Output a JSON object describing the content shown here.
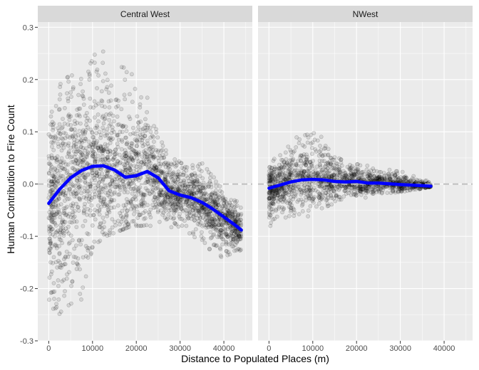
{
  "chart_data": {
    "type": "scatter",
    "title": "",
    "xlabel": "Distance to Populated Places (m)",
    "ylabel": "Human Contribution to Fire Count",
    "xlim": [
      -2500,
      46500
    ],
    "ylim": [
      -0.3,
      0.31
    ],
    "x_ticks": [
      0,
      10000,
      20000,
      30000,
      40000
    ],
    "x_tick_labels": [
      "0",
      "10000",
      "20000",
      "30000",
      "40000"
    ],
    "y_ticks": [
      -0.3,
      -0.2,
      -0.1,
      0.0,
      0.1,
      0.2,
      0.3
    ],
    "y_tick_labels": [
      "-0.3",
      "-0.2",
      "-0.1",
      "0.0",
      "0.1",
      "0.2",
      "0.3"
    ],
    "grid": true,
    "reference_line": {
      "y": 0,
      "style": "dashed",
      "color": "#bdbdbd"
    },
    "colors": {
      "panel_bg": "#ebebeb",
      "strip_bg": "#d9d9d9",
      "grid": "#ffffff",
      "point_fill": "#000000",
      "smooth": "#0000ff"
    },
    "panels": [
      {
        "name": "Central West",
        "point_cloud": {
          "x_range": [
            0,
            44000
          ],
          "envelope": [
            {
              "x": 0,
              "lo": -0.25,
              "hi": 0.11
            },
            {
              "x": 1000,
              "lo": -0.25,
              "hi": 0.15
            },
            {
              "x": 2500,
              "lo": -0.27,
              "hi": 0.19
            },
            {
              "x": 5000,
              "lo": -0.25,
              "hi": 0.21
            },
            {
              "x": 7500,
              "lo": -0.22,
              "hi": 0.21
            },
            {
              "x": 10000,
              "lo": -0.12,
              "hi": 0.25
            },
            {
              "x": 13000,
              "lo": -0.1,
              "hi": 0.27
            },
            {
              "x": 16000,
              "lo": -0.09,
              "hi": 0.25
            },
            {
              "x": 19000,
              "lo": -0.08,
              "hi": 0.22
            },
            {
              "x": 22000,
              "lo": -0.08,
              "hi": 0.19
            },
            {
              "x": 25000,
              "lo": -0.08,
              "hi": 0.1
            },
            {
              "x": 28000,
              "lo": -0.09,
              "hi": 0.05
            },
            {
              "x": 31000,
              "lo": -0.09,
              "hi": 0.04
            },
            {
              "x": 35000,
              "lo": -0.11,
              "hi": 0.04
            },
            {
              "x": 38000,
              "lo": -0.14,
              "hi": 0.01
            },
            {
              "x": 41000,
              "lo": -0.14,
              "hi": -0.02
            },
            {
              "x": 44000,
              "lo": -0.13,
              "hi": -0.04
            }
          ]
        },
        "smooth_line": [
          {
            "x": 0,
            "y": -0.037
          },
          {
            "x": 2500,
            "y": -0.01
          },
          {
            "x": 5000,
            "y": 0.012
          },
          {
            "x": 7500,
            "y": 0.026
          },
          {
            "x": 10000,
            "y": 0.034
          },
          {
            "x": 12500,
            "y": 0.035
          },
          {
            "x": 15000,
            "y": 0.027
          },
          {
            "x": 17500,
            "y": 0.013
          },
          {
            "x": 20000,
            "y": 0.016
          },
          {
            "x": 22500,
            "y": 0.024
          },
          {
            "x": 25000,
            "y": 0.012
          },
          {
            "x": 27500,
            "y": -0.013
          },
          {
            "x": 30000,
            "y": -0.021
          },
          {
            "x": 32500,
            "y": -0.026
          },
          {
            "x": 35000,
            "y": -0.035
          },
          {
            "x": 37500,
            "y": -0.048
          },
          {
            "x": 40000,
            "y": -0.063
          },
          {
            "x": 42500,
            "y": -0.078
          },
          {
            "x": 44000,
            "y": -0.088
          }
        ]
      },
      {
        "name": "NWest",
        "point_cloud": {
          "x_range": [
            0,
            37000
          ],
          "envelope": [
            {
              "x": 0,
              "lo": -0.09,
              "hi": 0.03
            },
            {
              "x": 2000,
              "lo": -0.07,
              "hi": 0.06
            },
            {
              "x": 5000,
              "lo": -0.06,
              "hi": 0.09
            },
            {
              "x": 8000,
              "lo": -0.07,
              "hi": 0.1
            },
            {
              "x": 11000,
              "lo": -0.05,
              "hi": 0.1
            },
            {
              "x": 14000,
              "lo": -0.04,
              "hi": 0.07
            },
            {
              "x": 17000,
              "lo": -0.03,
              "hi": 0.05
            },
            {
              "x": 20000,
              "lo": -0.03,
              "hi": 0.04
            },
            {
              "x": 25000,
              "lo": -0.02,
              "hi": 0.03
            },
            {
              "x": 30000,
              "lo": -0.015,
              "hi": 0.025
            },
            {
              "x": 34000,
              "lo": -0.01,
              "hi": 0.015
            },
            {
              "x": 37000,
              "lo": -0.005,
              "hi": 0.005
            }
          ]
        },
        "smooth_line": [
          {
            "x": 0,
            "y": -0.008
          },
          {
            "x": 2500,
            "y": -0.002
          },
          {
            "x": 5000,
            "y": 0.004
          },
          {
            "x": 7500,
            "y": 0.008
          },
          {
            "x": 10000,
            "y": 0.009
          },
          {
            "x": 12500,
            "y": 0.008
          },
          {
            "x": 15000,
            "y": 0.005
          },
          {
            "x": 17500,
            "y": 0.004
          },
          {
            "x": 20000,
            "y": 0.005
          },
          {
            "x": 22500,
            "y": 0.002
          },
          {
            "x": 25000,
            "y": 0.002
          },
          {
            "x": 30000,
            "y": -0.001
          },
          {
            "x": 35000,
            "y": -0.003
          },
          {
            "x": 37000,
            "y": -0.004
          }
        ]
      }
    ]
  }
}
